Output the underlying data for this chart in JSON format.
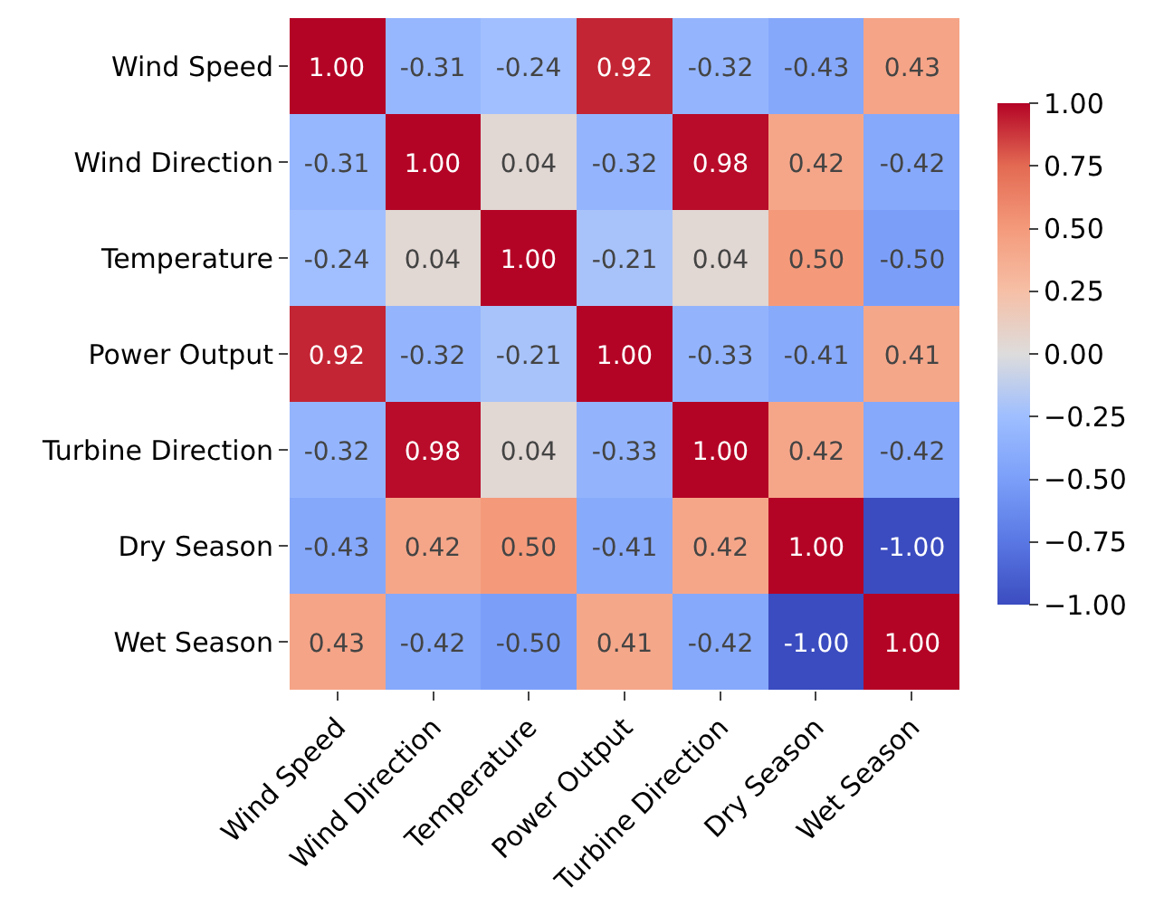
{
  "chart_data": {
    "type": "heatmap",
    "categories": [
      "Wind Speed",
      "Wind Direction",
      "Temperature",
      "Power Output",
      "Turbine Direction",
      "Dry Season",
      "Wet Season"
    ],
    "y_categories": [
      "Wind Speed",
      "Wind Direction",
      "Temperature",
      "Power Output",
      "Turbine Direction",
      "Dry Season",
      "Wet Season"
    ],
    "cells": [
      [
        1.0,
        -0.31,
        -0.24,
        0.92,
        -0.32,
        -0.43,
        0.43
      ],
      [
        -0.31,
        1.0,
        0.04,
        -0.32,
        0.98,
        0.42,
        -0.42
      ],
      [
        -0.24,
        0.04,
        1.0,
        -0.21,
        0.04,
        0.5,
        -0.5
      ],
      [
        0.92,
        -0.32,
        -0.21,
        1.0,
        -0.33,
        -0.41,
        0.41
      ],
      [
        -0.32,
        0.98,
        0.04,
        -0.33,
        1.0,
        0.42,
        -0.42
      ],
      [
        -0.43,
        0.42,
        0.5,
        -0.41,
        0.42,
        1.0,
        -1.0
      ],
      [
        0.43,
        -0.42,
        -0.5,
        0.41,
        -0.42,
        -1.0,
        1.0
      ]
    ],
    "cell_labels": [
      [
        "1.00",
        "-0.31",
        "-0.24",
        "0.92",
        "-0.32",
        "-0.43",
        "0.43"
      ],
      [
        "-0.31",
        "1.00",
        "0.04",
        "-0.32",
        "0.98",
        "0.42",
        "-0.42"
      ],
      [
        "-0.24",
        "0.04",
        "1.00",
        "-0.21",
        "0.04",
        "0.50",
        "-0.50"
      ],
      [
        "0.92",
        "-0.32",
        "-0.21",
        "1.00",
        "-0.33",
        "-0.41",
        "0.41"
      ],
      [
        "-0.32",
        "0.98",
        "0.04",
        "-0.33",
        "1.00",
        "0.42",
        "-0.42"
      ],
      [
        "-0.43",
        "0.42",
        "0.50",
        "-0.41",
        "0.42",
        "1.00",
        "-1.00"
      ],
      [
        "0.43",
        "-0.42",
        "-0.50",
        "0.41",
        "-0.42",
        "-1.00",
        "1.00"
      ]
    ],
    "clim": [
      -1.0,
      1.0
    ],
    "cticks": [
      {
        "value": 1.0,
        "label": "1.00"
      },
      {
        "value": 0.75,
        "label": "0.75"
      },
      {
        "value": 0.5,
        "label": "0.50"
      },
      {
        "value": 0.25,
        "label": "0.25"
      },
      {
        "value": 0.0,
        "label": "0.00"
      },
      {
        "value": -0.25,
        "label": "−0.25"
      },
      {
        "value": -0.5,
        "label": "−0.50"
      },
      {
        "value": -0.75,
        "label": "−0.75"
      },
      {
        "value": -1.0,
        "label": "−1.00"
      }
    ]
  }
}
